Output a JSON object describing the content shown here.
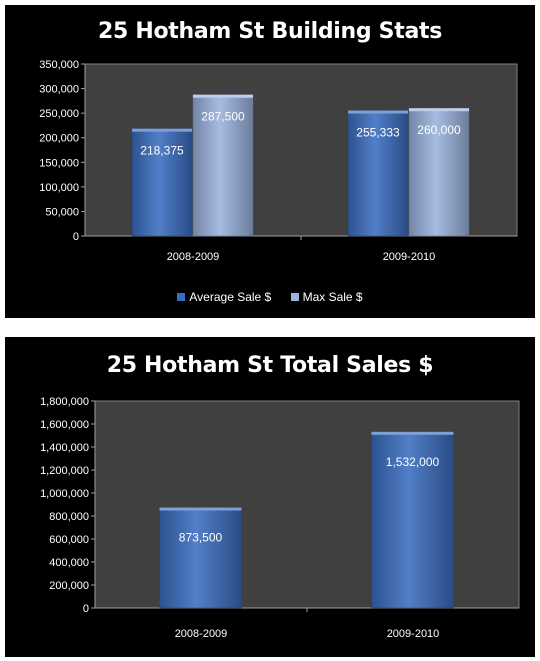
{
  "chart_data": [
    {
      "type": "bar",
      "title": "25 Hotham St Building Stats",
      "categories": [
        "2008-2009",
        "2009-2010"
      ],
      "series": [
        {
          "name": "Average Sale $",
          "values": [
            218375,
            255333
          ],
          "labels": [
            "218,375",
            "255,333"
          ],
          "color": "#3a6dc0"
        },
        {
          "name": "Max Sale $",
          "values": [
            287500,
            260000
          ],
          "labels": [
            "287,500",
            "260,000"
          ],
          "color": "#9bb3de"
        }
      ],
      "ylim": [
        0,
        350000
      ],
      "yticks": [
        "0",
        "50,000",
        "100,000",
        "150,000",
        "200,000",
        "250,000",
        "300,000",
        "350,000"
      ],
      "grid": false,
      "legend": "bottom",
      "background": "#404040"
    },
    {
      "type": "bar",
      "title": "25 Hotham St Total Sales $",
      "categories": [
        "2008-2009",
        "2009-2010"
      ],
      "series": [
        {
          "values": [
            873500,
            1532000
          ],
          "labels": [
            "873,500",
            "1,532,000"
          ],
          "color": "#3a6dc0"
        }
      ],
      "ylim": [
        0,
        1800000
      ],
      "yticks": [
        "0",
        "200,000",
        "400,000",
        "600,000",
        "800,000",
        "1,000,000",
        "1,200,000",
        "1,400,000",
        "1,600,000",
        "1,800,000"
      ],
      "grid": false,
      "legend": "none",
      "background": "#404040"
    }
  ]
}
